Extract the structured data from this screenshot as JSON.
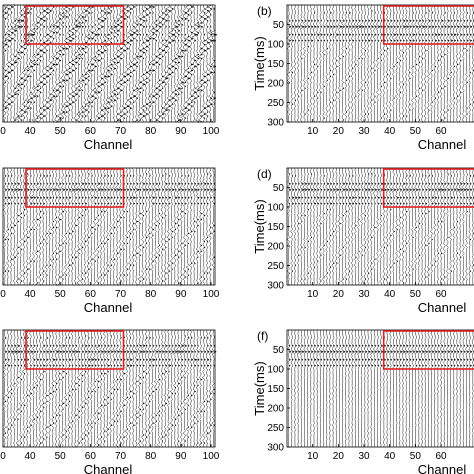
{
  "panels": [
    {
      "id": "a",
      "label": "",
      "side": "left",
      "row": 0,
      "xticks": [
        "0",
        "40",
        "50",
        "60",
        "70",
        "80",
        "90",
        "100"
      ],
      "yticks": [],
      "ylabel": "",
      "xlabel": "Channel",
      "style": "noisy"
    },
    {
      "id": "b",
      "label": "(b)",
      "side": "right",
      "row": 0,
      "xticks": [
        "10",
        "20",
        "30",
        "40",
        "50",
        "60"
      ],
      "yticks": [
        "50",
        "100",
        "150",
        "200",
        "250",
        "300"
      ],
      "ylabel": "Time(ms)",
      "xlabel": "Channel",
      "style": "medium"
    },
    {
      "id": "c",
      "label": "",
      "side": "left",
      "row": 1,
      "xticks": [
        "0",
        "40",
        "50",
        "60",
        "70",
        "80",
        "90",
        "100"
      ],
      "yticks": [],
      "ylabel": "",
      "xlabel": "Channel",
      "style": "strong"
    },
    {
      "id": "d",
      "label": "(d)",
      "side": "right",
      "row": 1,
      "xticks": [
        "10",
        "20",
        "30",
        "40",
        "50",
        "60"
      ],
      "yticks": [
        "50",
        "100",
        "150",
        "200",
        "250",
        "300"
      ],
      "ylabel": "Time(ms)",
      "xlabel": "Channel",
      "style": "medium"
    },
    {
      "id": "e",
      "label": "",
      "side": "left",
      "row": 2,
      "xticks": [
        "0",
        "40",
        "50",
        "60",
        "70",
        "80",
        "90",
        "100"
      ],
      "yticks": [],
      "ylabel": "",
      "xlabel": "Channel",
      "style": "strong"
    },
    {
      "id": "f",
      "label": "(f)",
      "side": "right",
      "row": 2,
      "xticks": [
        "10",
        "20",
        "30",
        "40",
        "50",
        "60"
      ],
      "yticks": [
        "50",
        "100",
        "150",
        "200",
        "250",
        "300"
      ],
      "ylabel": "Time(ms)",
      "xlabel": "Channel",
      "style": "clean"
    }
  ],
  "colors": {
    "box": "#e02020",
    "trace": "#000000"
  }
}
